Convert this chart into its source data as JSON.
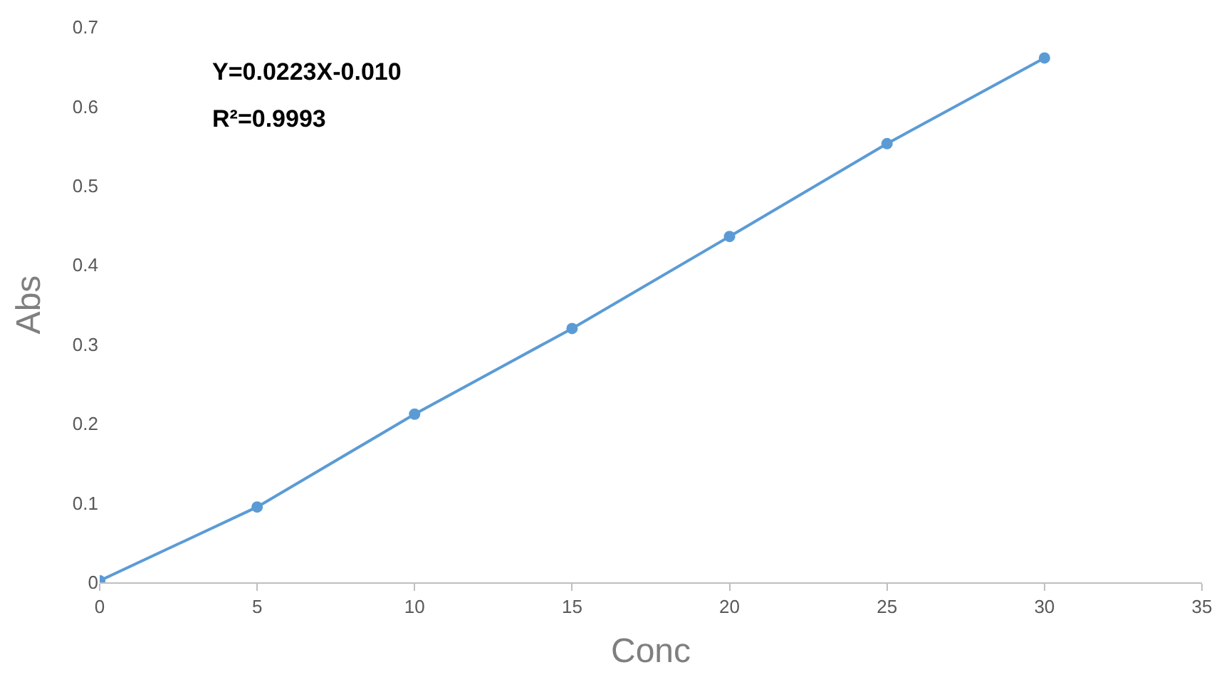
{
  "chart_data": {
    "type": "line",
    "xlabel": "Conc",
    "ylabel": "Abs",
    "x": [
      0,
      5,
      10,
      15,
      20,
      25,
      30
    ],
    "series": [
      {
        "color": "#5b9bd5",
        "values": [
          0.002,
          0.095,
          0.212,
          0.32,
          0.436,
          0.553,
          0.661
        ]
      }
    ],
    "xlim": [
      0,
      35
    ],
    "xticks": [
      0,
      5,
      10,
      15,
      20,
      25,
      30,
      35
    ],
    "ylim": [
      0,
      0.7
    ],
    "yticks": [
      0,
      0.1,
      0.2,
      0.3,
      0.4,
      0.5,
      0.6,
      0.7
    ],
    "annotations": [
      "Y=0.0223X-0.010",
      "R²=0.9993"
    ],
    "marker": "circle",
    "line_style": "solid"
  }
}
